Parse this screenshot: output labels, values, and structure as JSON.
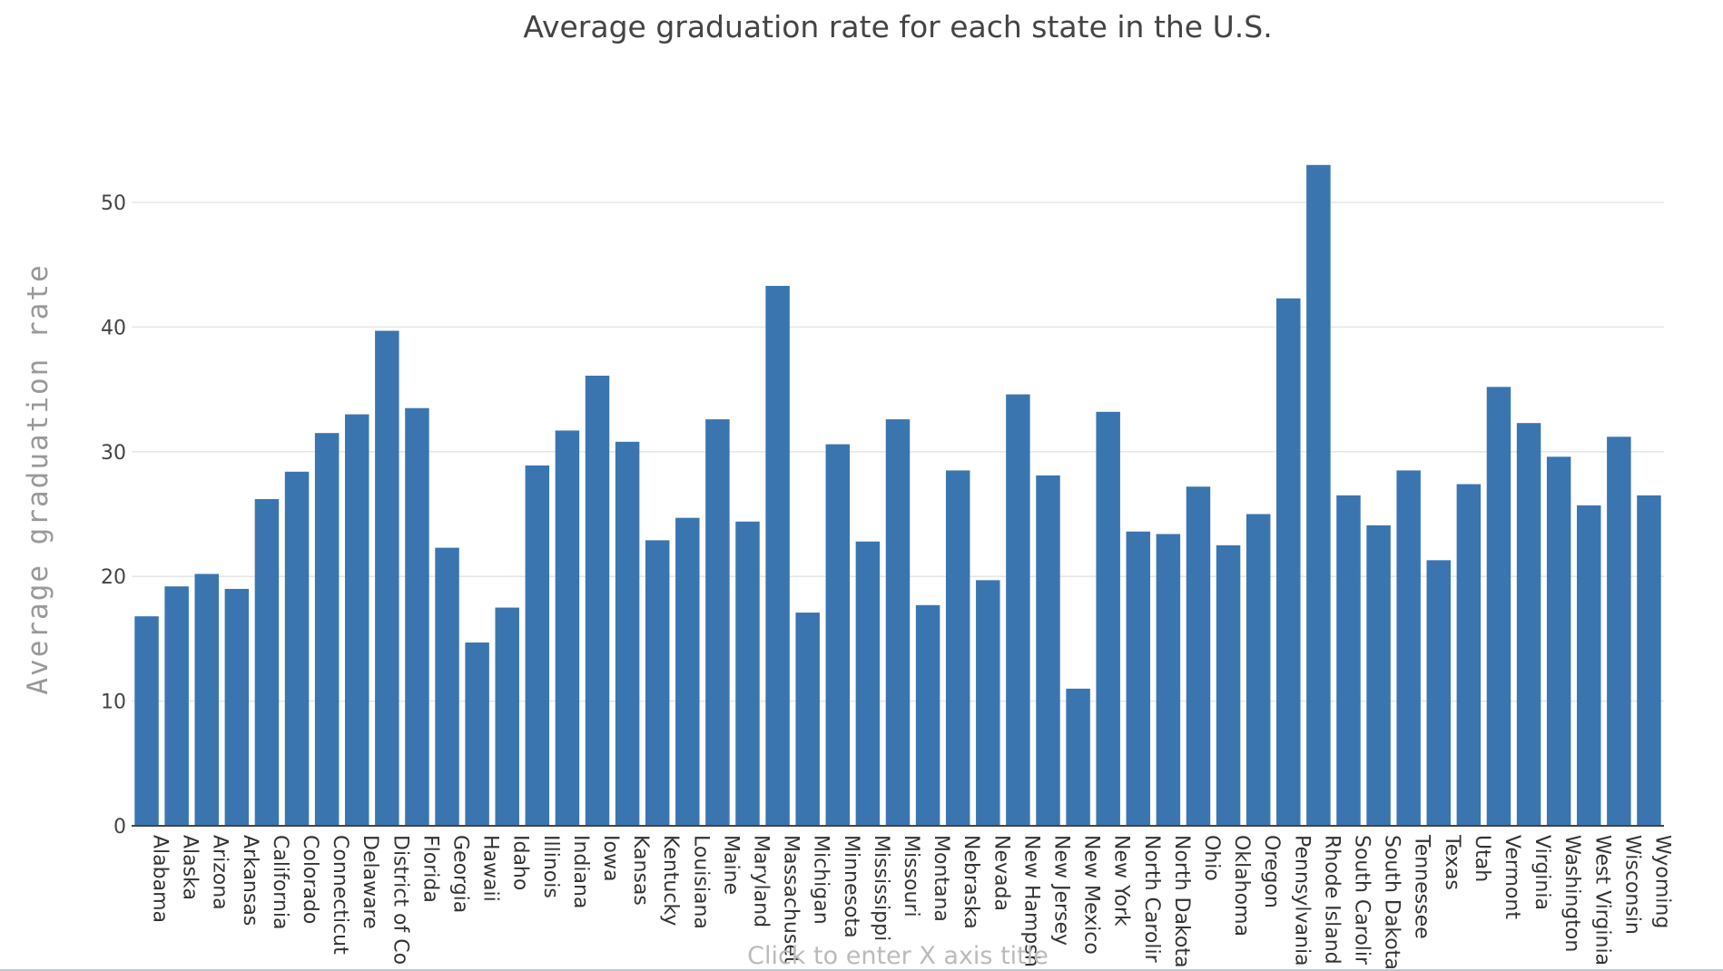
{
  "chart_data": {
    "type": "bar",
    "title": "Average graduation rate for each state in the U.S.",
    "xlabel": "Click to enter X axis title",
    "ylabel": "Average graduation rate",
    "ylim": [
      0,
      56
    ],
    "yticks": [
      0,
      10,
      20,
      30,
      40,
      50
    ],
    "grid": true,
    "bar_color": "#3a75b0",
    "categories": [
      "Alabama",
      "Alaska",
      "Arizona",
      "Arkansas",
      "California",
      "Colorado",
      "Connecticut",
      "Delaware",
      "District of Co",
      "Florida",
      "Georgia",
      "Hawaii",
      "Idaho",
      "Illinois",
      "Indiana",
      "Iowa",
      "Kansas",
      "Kentucky",
      "Louisiana",
      "Maine",
      "Maryland",
      "Massachuset",
      "Michigan",
      "Minnesota",
      "Mississippi",
      "Missouri",
      "Montana",
      "Nebraska",
      "Nevada",
      "New Hampsh",
      "New Jersey",
      "New Mexico",
      "New York",
      "North Carolir",
      "North Dakota",
      "Ohio",
      "Oklahoma",
      "Oregon",
      "Pennsylvania",
      "Rhode Island",
      "South Carolir",
      "South Dakota",
      "Tennessee",
      "Texas",
      "Utah",
      "Vermont",
      "Virginia",
      "Washington",
      "West Virginia",
      "Wisconsin",
      "Wyoming"
    ],
    "values": [
      16.8,
      19.2,
      20.2,
      19.0,
      26.2,
      28.4,
      31.5,
      33.0,
      39.7,
      33.5,
      22.3,
      14.7,
      17.5,
      28.9,
      31.7,
      36.1,
      30.8,
      22.9,
      24.7,
      32.6,
      24.4,
      43.3,
      17.1,
      30.6,
      22.8,
      32.6,
      17.7,
      28.5,
      19.7,
      34.6,
      28.1,
      11.0,
      33.2,
      23.6,
      23.4,
      27.2,
      22.5,
      25.0,
      42.3,
      53.0,
      26.5,
      24.1,
      28.5,
      21.3,
      27.4,
      35.2,
      32.3,
      29.6,
      25.7,
      31.2,
      26.5
    ]
  }
}
